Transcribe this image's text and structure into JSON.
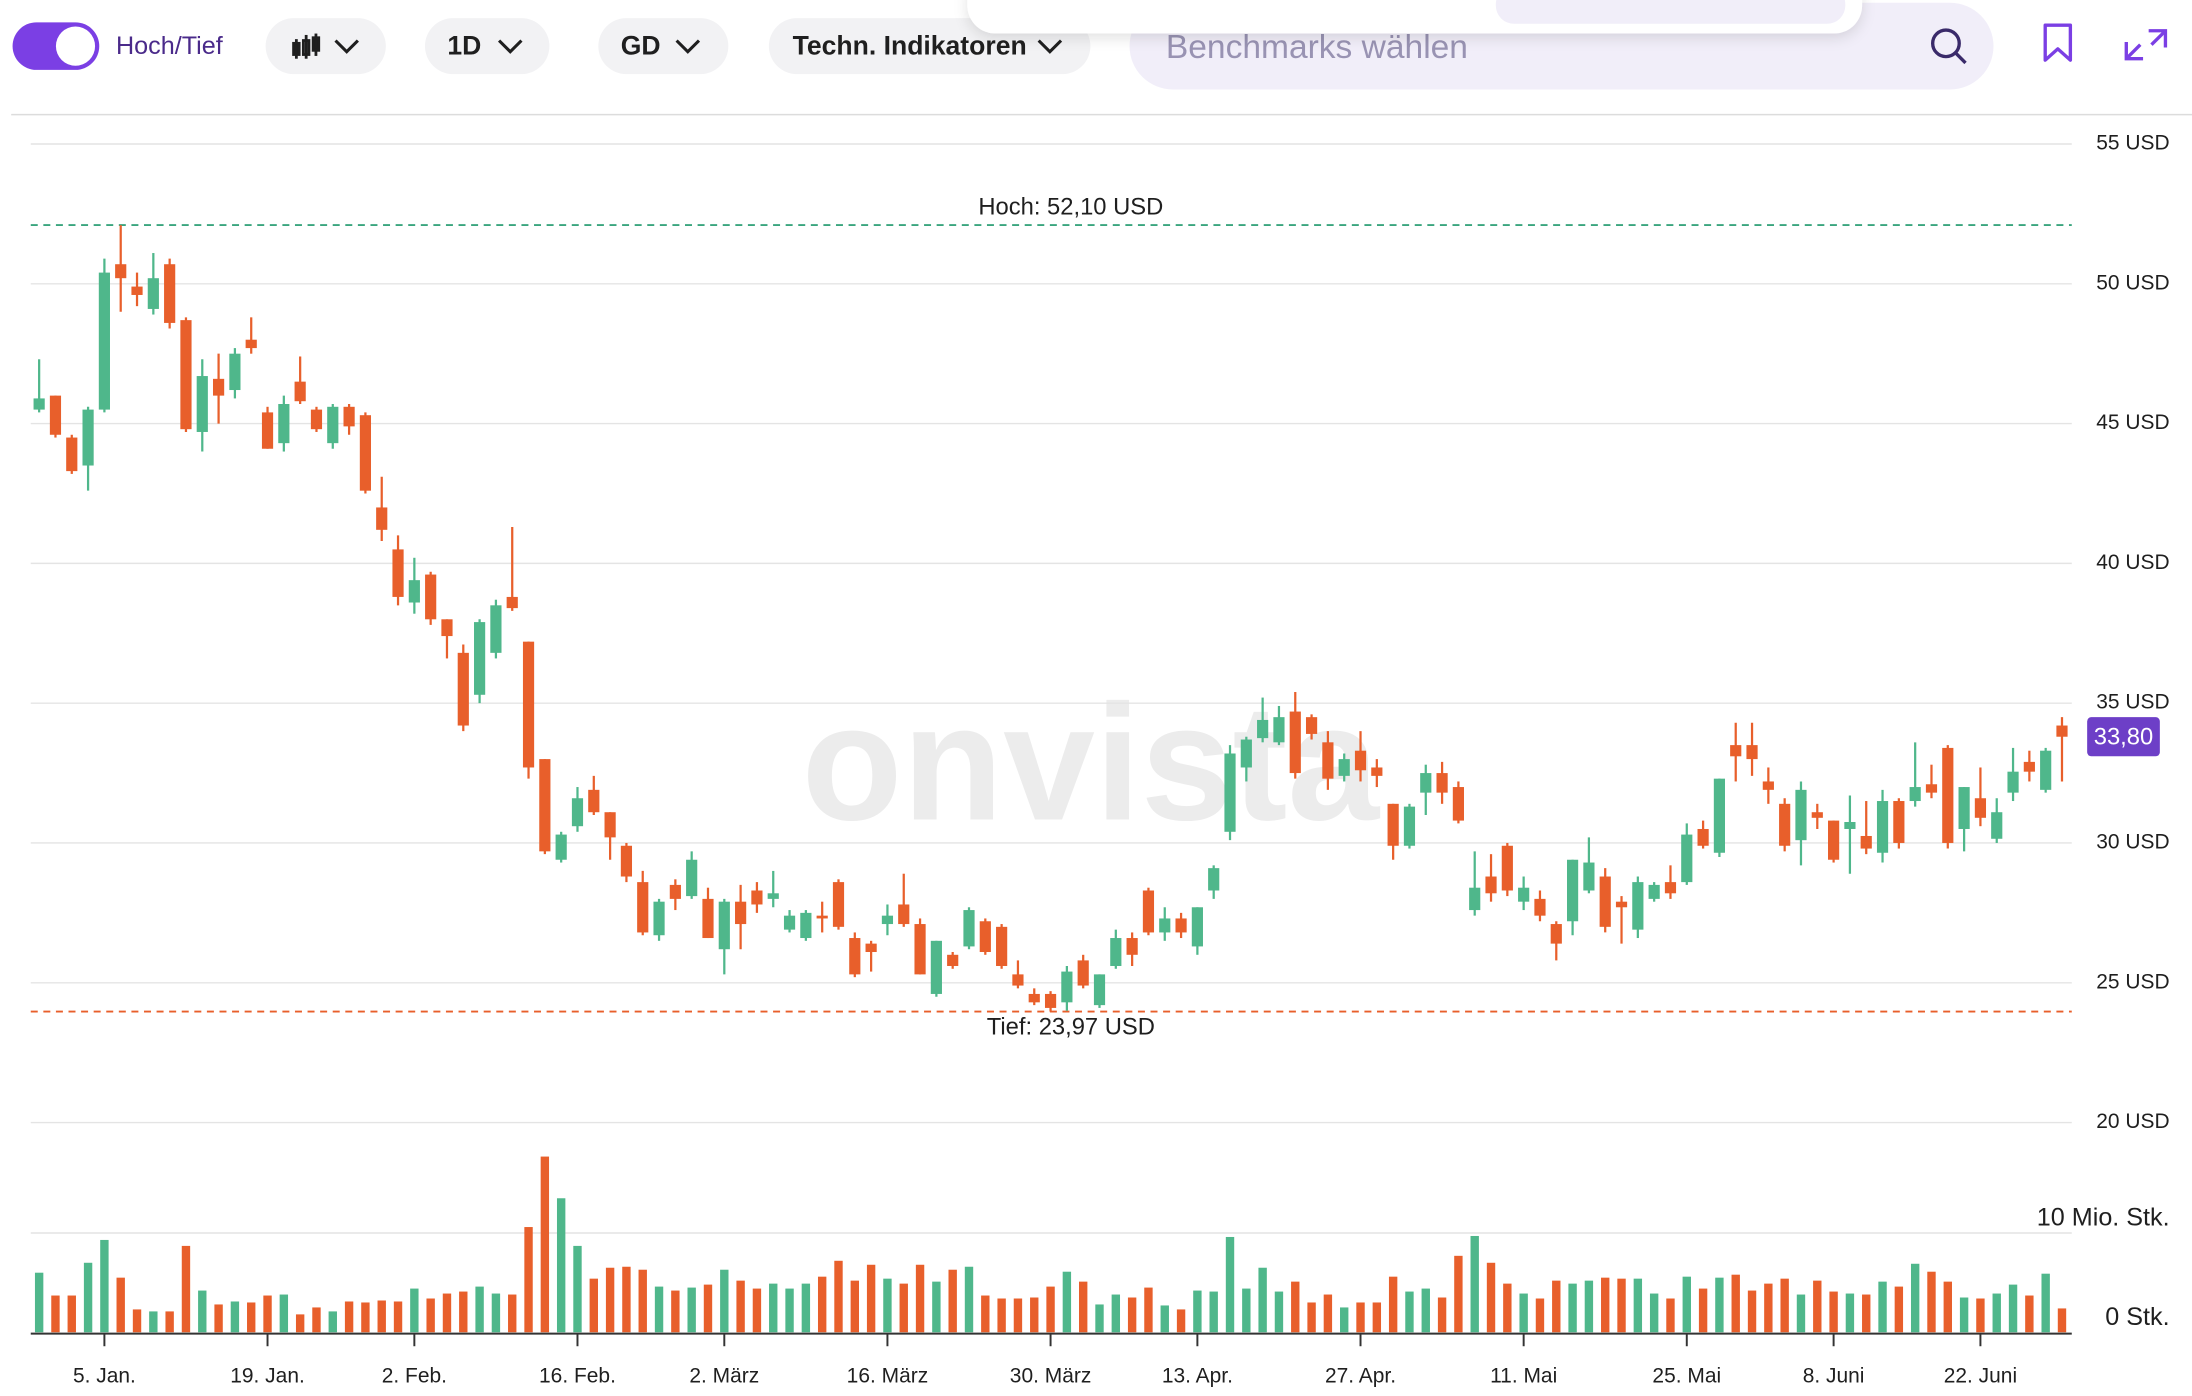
{
  "toolbar": {
    "toggle_label": "Hoch/Tief",
    "interval": "1D",
    "average": "GD",
    "indicators": "Techn. Indikatoren",
    "search_placeholder": "Benchmarks wählen"
  },
  "chart_data": {
    "type": "candlestick",
    "watermark": "onvista",
    "categories": [
      null,
      null,
      null,
      null,
      "5. Jan.",
      null,
      null,
      null,
      null,
      null,
      null,
      null,
      null,
      null,
      "19. Jan.",
      null,
      null,
      null,
      null,
      null,
      null,
      null,
      null,
      "2. Feb.",
      null,
      null,
      null,
      null,
      null,
      null,
      null,
      null,
      null,
      "16. Feb.",
      null,
      null,
      null,
      null,
      null,
      null,
      null,
      null,
      "2. März",
      null,
      null,
      null,
      null,
      null,
      null,
      null,
      null,
      null,
      "16. März",
      null,
      null,
      null,
      null,
      null,
      null,
      null,
      null,
      null,
      "30. März",
      null,
      null,
      null,
      null,
      null,
      null,
      null,
      null,
      "13. Apr.",
      null,
      null,
      null,
      null,
      null,
      null,
      null,
      null,
      null,
      "27. Apr.",
      null,
      null,
      null,
      null,
      null,
      null,
      null,
      null,
      null,
      "11. Mai",
      null,
      null,
      null,
      null,
      null,
      null,
      null,
      null,
      null,
      "25. Mai",
      null,
      null,
      null,
      null,
      null,
      null,
      null,
      null,
      "8. Juni",
      null,
      null,
      null,
      null,
      null,
      null,
      null,
      null,
      "22. Juni",
      null,
      null,
      null,
      null,
      null
    ],
    "open": [
      45.5,
      46.0,
      44.5,
      43.5,
      45.5,
      50.7,
      49.9,
      49.1,
      50.7,
      48.7,
      44.7,
      46.6,
      46.2,
      48.0,
      45.4,
      44.3,
      46.5,
      45.5,
      44.3,
      45.6,
      45.3,
      42.0,
      40.5,
      38.6,
      39.6,
      38.0,
      36.8,
      35.3,
      36.8,
      38.8,
      37.2,
      33.0,
      29.4,
      30.6,
      31.9,
      31.1,
      29.9,
      28.6,
      26.7,
      28.5,
      28.1,
      28.0,
      26.2,
      27.9,
      28.3,
      28.0,
      26.9,
      26.6,
      27.4,
      28.6,
      26.6,
      26.4,
      27.1,
      27.8,
      27.1,
      24.6,
      26.0,
      26.3,
      27.2,
      27.0,
      25.3,
      24.6,
      24.6,
      24.3,
      25.8,
      24.2,
      25.6,
      26.6,
      28.3,
      26.8,
      27.3,
      26.3,
      28.3,
      30.4,
      32.7,
      33.75,
      33.6,
      34.7,
      34.5,
      33.6,
      32.4,
      33.3,
      32.7,
      31.4,
      29.9,
      31.8,
      32.5,
      32.0,
      27.6,
      28.8,
      29.9,
      27.9,
      28.0,
      27.1,
      27.2,
      28.3,
      28.8,
      27.9,
      26.9,
      28.0,
      28.6,
      28.6,
      30.5,
      29.65,
      33.5,
      33.5,
      32.2,
      31.4,
      30.1,
      31.1,
      30.8,
      30.5,
      30.25,
      29.65,
      31.5,
      31.5,
      32.1,
      33.4,
      30.5,
      31.6,
      30.15,
      31.8,
      32.9,
      31.9,
      34.2
    ],
    "high": [
      47.3,
      46.0,
      44.6,
      45.6,
      50.9,
      52.1,
      50.4,
      51.1,
      50.9,
      48.8,
      47.3,
      47.5,
      47.7,
      48.8,
      45.6,
      46.0,
      47.4,
      45.6,
      45.7,
      45.7,
      45.4,
      43.1,
      41.0,
      40.2,
      39.7,
      38.0,
      37.1,
      38.0,
      38.7,
      41.3,
      37.2,
      33.0,
      30.4,
      32.0,
      32.4,
      31.1,
      30.0,
      29.0,
      28.0,
      28.7,
      29.7,
      28.4,
      28.0,
      28.5,
      28.6,
      29.0,
      27.6,
      27.6,
      27.9,
      28.7,
      26.8,
      26.5,
      27.8,
      28.9,
      27.3,
      26.5,
      26.1,
      27.7,
      27.3,
      27.1,
      25.8,
      24.8,
      24.7,
      25.6,
      26.0,
      25.3,
      26.9,
      26.8,
      28.4,
      27.7,
      27.5,
      27.7,
      29.2,
      33.5,
      33.8,
      35.2,
      34.9,
      35.4,
      34.6,
      34.0,
      33.2,
      34.0,
      33.0,
      31.4,
      31.4,
      32.8,
      32.9,
      32.2,
      29.7,
      29.6,
      30.0,
      28.8,
      28.3,
      27.2,
      29.4,
      30.2,
      29.1,
      28.1,
      28.8,
      28.6,
      29.2,
      30.7,
      30.8,
      32.3,
      34.3,
      34.3,
      32.7,
      31.6,
      32.2,
      31.4,
      30.8,
      31.7,
      31.5,
      31.9,
      31.6,
      33.6,
      32.8,
      33.5,
      32.0,
      32.7,
      31.6,
      33.4,
      33.3,
      33.4,
      34.5
    ],
    "low": [
      45.4,
      44.5,
      43.2,
      42.6,
      45.4,
      49.0,
      49.2,
      48.9,
      48.4,
      44.7,
      44.0,
      45.0,
      45.9,
      47.5,
      44.1,
      44.0,
      45.7,
      44.7,
      44.1,
      44.6,
      42.5,
      40.8,
      38.5,
      38.2,
      37.8,
      36.6,
      34.0,
      35.0,
      36.6,
      38.3,
      32.3,
      29.6,
      29.3,
      30.4,
      31.0,
      29.4,
      28.6,
      26.7,
      26.5,
      27.6,
      28.0,
      26.6,
      25.3,
      26.2,
      27.5,
      27.7,
      26.8,
      26.5,
      26.8,
      26.9,
      25.2,
      25.4,
      26.7,
      27.0,
      25.3,
      24.5,
      25.5,
      26.2,
      26.0,
      25.5,
      24.8,
      24.2,
      23.97,
      24.0,
      24.8,
      24.1,
      25.5,
      25.6,
      26.7,
      26.5,
      26.6,
      26.0,
      28.0,
      30.1,
      32.2,
      33.6,
      33.5,
      32.3,
      33.7,
      31.9,
      32.2,
      32.2,
      32.0,
      29.4,
      29.8,
      31.0,
      31.4,
      30.7,
      27.4,
      27.9,
      28.1,
      27.6,
      27.2,
      25.8,
      26.7,
      28.2,
      26.8,
      26.4,
      26.6,
      27.9,
      28.0,
      28.5,
      29.8,
      29.5,
      32.2,
      32.4,
      31.4,
      29.7,
      29.2,
      30.5,
      29.3,
      28.9,
      29.6,
      29.3,
      29.8,
      31.3,
      31.6,
      29.8,
      29.7,
      30.6,
      30.0,
      31.5,
      32.2,
      31.8,
      32.2
    ],
    "close": [
      45.9,
      44.6,
      43.3,
      45.5,
      50.4,
      50.2,
      49.6,
      50.2,
      48.6,
      44.8,
      46.7,
      46.0,
      47.5,
      47.7,
      44.1,
      45.7,
      45.8,
      44.8,
      45.6,
      44.9,
      42.6,
      41.2,
      38.8,
      39.4,
      38.0,
      37.4,
      34.2,
      37.9,
      38.5,
      38.4,
      32.7,
      29.7,
      30.3,
      31.6,
      31.1,
      30.2,
      28.8,
      26.8,
      27.9,
      28.0,
      29.4,
      26.6,
      27.9,
      27.1,
      27.8,
      28.2,
      27.4,
      27.5,
      27.3,
      27.0,
      25.3,
      26.1,
      27.4,
      27.1,
      25.3,
      26.5,
      25.6,
      27.6,
      26.1,
      25.6,
      24.9,
      24.3,
      24.1,
      25.4,
      24.9,
      25.3,
      26.6,
      26.0,
      26.8,
      27.3,
      26.8,
      27.7,
      29.1,
      33.2,
      33.7,
      34.4,
      34.5,
      32.5,
      33.9,
      32.3,
      33.0,
      32.6,
      32.4,
      29.9,
      31.3,
      32.5,
      31.8,
      30.8,
      28.4,
      28.2,
      28.3,
      28.4,
      27.4,
      26.4,
      29.4,
      29.3,
      27.0,
      27.7,
      28.6,
      28.5,
      28.2,
      30.3,
      29.9,
      32.3,
      33.1,
      33.0,
      31.9,
      29.9,
      31.9,
      30.9,
      29.4,
      30.75,
      29.8,
      31.5,
      30.0,
      32.0,
      31.8,
      30.0,
      32.0,
      30.9,
      31.1,
      32.55,
      32.55,
      33.3,
      33.8
    ],
    "up_color": "#4fb78b",
    "down_color": "#e85f2b",
    "ylim": [
      20,
      56
    ],
    "yticks": [
      {
        "value": 20,
        "label": "20 USD"
      },
      {
        "value": 25,
        "label": "25 USD"
      },
      {
        "value": 30,
        "label": "30 USD"
      },
      {
        "value": 35,
        "label": "35 USD"
      },
      {
        "value": 40,
        "label": "40 USD"
      },
      {
        "value": 45,
        "label": "45 USD"
      },
      {
        "value": 50,
        "label": "50 USD"
      },
      {
        "value": 55,
        "label": "55 USD"
      }
    ],
    "grid": true,
    "annotations": [
      {
        "value": 52.1,
        "label": "Hoch: 52,10 USD",
        "color": "#3aa57e"
      },
      {
        "value": 23.97,
        "label": "Tief: 23,97 USD",
        "color": "#e85f2b"
      }
    ],
    "last_price": {
      "value": 33.8,
      "label": "33,80",
      "color": "#6d3fc7"
    },
    "volume": {
      "values": [
        6.0,
        3.7,
        3.7,
        7.0,
        9.3,
        5.5,
        2.3,
        2.1,
        2.1,
        8.7,
        4.2,
        2.8,
        3.1,
        3.0,
        3.7,
        3.8,
        1.8,
        2.5,
        2.1,
        3.1,
        3.0,
        3.2,
        3.1,
        4.4,
        3.4,
        3.9,
        4.1,
        4.6,
        3.9,
        3.8,
        10.6,
        17.7,
        13.5,
        8.7,
        5.4,
        6.5,
        6.6,
        6.3,
        4.6,
        4.2,
        4.5,
        4.8,
        6.3,
        5.2,
        4.4,
        4.9,
        4.4,
        4.9,
        5.6,
        7.2,
        5.2,
        6.8,
        5.4,
        4.9,
        6.8,
        5.1,
        6.3,
        6.6,
        3.7,
        3.4,
        3.4,
        3.5,
        4.6,
        6.1,
        5.1,
        2.8,
        3.8,
        3.5,
        4.5,
        2.7,
        2.3,
        4.2,
        4.1,
        9.6,
        4.4,
        6.5,
        4.1,
        5.1,
        3.0,
        3.8,
        2.5,
        3.0,
        3.0,
        5.6,
        4.1,
        4.4,
        3.5,
        7.7,
        9.7,
        7.0,
        4.9,
        3.9,
        3.4,
        5.2,
        4.9,
        5.2,
        5.5,
        5.4,
        5.4,
        3.9,
        3.4,
        5.6,
        4.4,
        5.5,
        5.8,
        4.2,
        4.9,
        5.4,
        3.8,
        5.2,
        4.1,
        3.9,
        3.8,
        5.1,
        4.6,
        6.9,
        6.1,
        5.1,
        3.5,
        3.4,
        3.9,
        4.8,
        3.7,
        5.9,
        2.4
      ],
      "ylim": [
        0,
        18
      ],
      "yticks": [
        {
          "value": 0,
          "label": "0 Stk."
        },
        {
          "value": 10,
          "label": "10 Mio. Stk."
        }
      ]
    }
  }
}
